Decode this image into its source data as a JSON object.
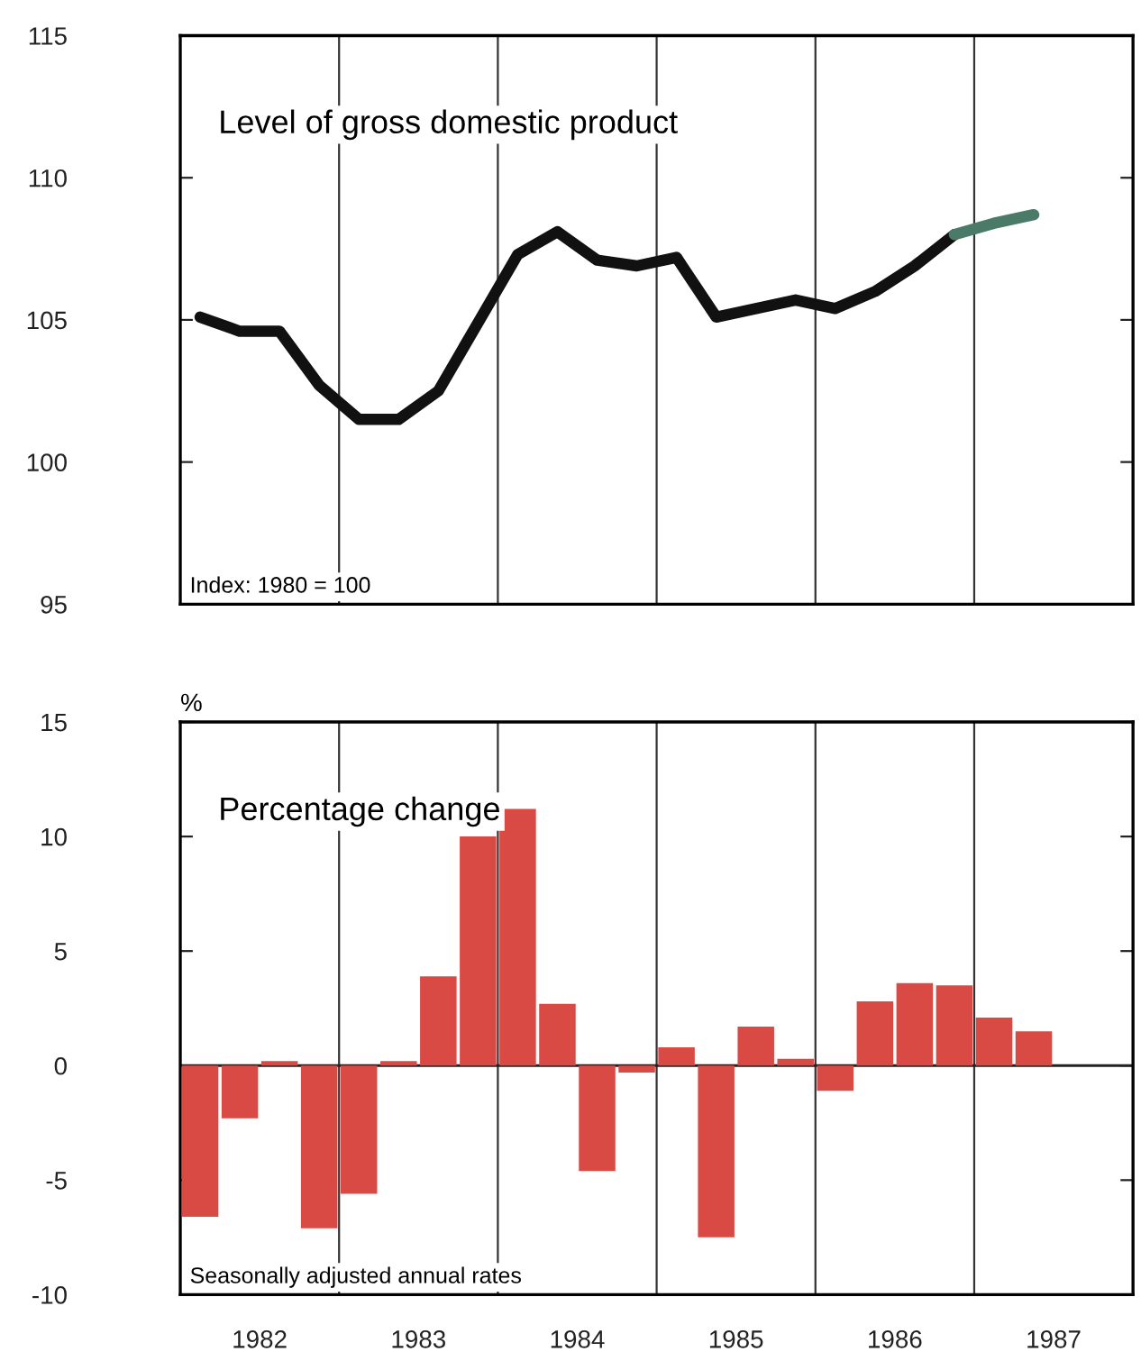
{
  "chart_data": [
    {
      "type": "line",
      "annotations": [
        "Level of gross domestic product",
        "Index: 1980 = 100"
      ],
      "x": [
        1982.125,
        1982.375,
        1982.625,
        1982.875,
        1983.125,
        1983.375,
        1983.625,
        1983.875,
        1984.125,
        1984.375,
        1984.625,
        1984.875,
        1985.125,
        1985.375,
        1985.625,
        1985.875,
        1986.125,
        1986.375,
        1986.625,
        1986.875,
        1987.125,
        1987.375
      ],
      "series": [
        {
          "color": "#111111",
          "values": [
            105.1,
            104.6,
            104.6,
            102.7,
            101.5,
            101.5,
            102.5,
            104.9,
            107.3,
            108.1,
            107.1,
            106.9,
            107.2,
            105.1,
            105.4,
            105.7,
            105.4,
            106.0,
            106.9,
            108.0,
            null,
            null
          ]
        },
        {
          "color": "#4a7a68",
          "values": [
            null,
            null,
            null,
            null,
            null,
            null,
            null,
            null,
            null,
            null,
            null,
            null,
            null,
            null,
            null,
            null,
            null,
            null,
            null,
            108.0,
            108.4,
            108.7
          ]
        }
      ],
      "xlim": [
        1982,
        1988
      ],
      "ylim": [
        95,
        115
      ],
      "yticks": [
        95,
        100,
        105,
        110,
        115
      ],
      "tick_labels": "y",
      "ref_lines": [
        {
          "axis": "x",
          "value": 1983
        },
        {
          "axis": "x",
          "value": 1984
        },
        {
          "axis": "x",
          "value": 1985
        },
        {
          "axis": "x",
          "value": 1986
        },
        {
          "axis": "x",
          "value": 1987
        }
      ]
    },
    {
      "type": "bar",
      "ylabel": "%",
      "annotations": [
        "Percentage change",
        "Seasonally adjusted annual rates"
      ],
      "x": [
        1982.125,
        1982.375,
        1982.625,
        1982.875,
        1983.125,
        1983.375,
        1983.625,
        1983.875,
        1984.125,
        1984.375,
        1984.625,
        1984.875,
        1985.125,
        1985.375,
        1985.625,
        1985.875,
        1986.125,
        1986.375,
        1986.625,
        1986.875,
        1987.125,
        1987.375
      ],
      "values": [
        -6.6,
        -2.3,
        0.2,
        -7.1,
        -5.6,
        0.2,
        3.9,
        10.0,
        11.2,
        2.7,
        -4.6,
        -0.3,
        0.8,
        -7.5,
        1.7,
        0.3,
        -1.1,
        2.8,
        3.6,
        3.5,
        2.1,
        1.5
      ],
      "color": "#d94a45",
      "xlim": [
        1982,
        1988
      ],
      "ylim": [
        -10,
        15
      ],
      "yticks": [
        -10,
        -5,
        0,
        5,
        10,
        15
      ],
      "xticks": [
        {
          "value": 1982.5,
          "label": "1982"
        },
        {
          "value": 1983.5,
          "label": "1983"
        },
        {
          "value": 1984.5,
          "label": "1984"
        },
        {
          "value": 1985.5,
          "label": "1985"
        },
        {
          "value": 1986.5,
          "label": "1986"
        },
        {
          "value": 1987.5,
          "label": "1987"
        }
      ],
      "ref_lines": [
        {
          "axis": "y",
          "value": 0
        },
        {
          "axis": "x",
          "value": 1983
        },
        {
          "axis": "x",
          "value": 1984
        },
        {
          "axis": "x",
          "value": 1985
        },
        {
          "axis": "x",
          "value": 1986
        },
        {
          "axis": "x",
          "value": 1987
        }
      ]
    }
  ]
}
